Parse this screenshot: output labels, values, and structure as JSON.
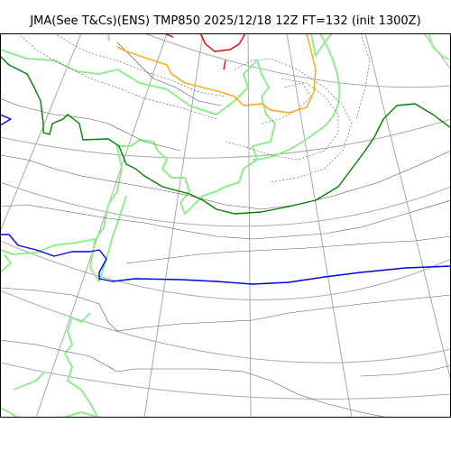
{
  "title": "JMA(See T&Cs)(ENS) TMP850 2025/12/18 12Z FT=132 (init 1300Z)",
  "map": {
    "product": "TMP850",
    "layers": [
      {
        "name": "graticule",
        "color": "#a9a9a9"
      },
      {
        "name": "coastline",
        "color": "#90ee90"
      },
      {
        "name": "temperature-isotherms",
        "color": "#555555"
      },
      {
        "name": "isotherm-0C",
        "color": "#008000"
      },
      {
        "name": "isotherm-warm",
        "color": "#0000ee"
      },
      {
        "name": "isotherm-cold-orange",
        "color": "#ffa500"
      },
      {
        "name": "isotherm-cold-red",
        "color": "#ee0000"
      }
    ]
  }
}
